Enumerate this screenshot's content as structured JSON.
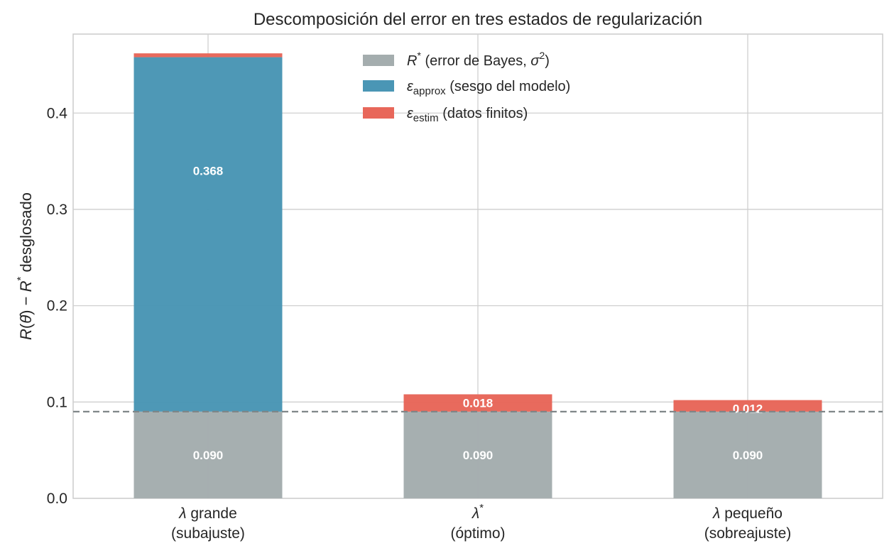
{
  "chart_data": {
    "type": "bar",
    "stacked": true,
    "title": "Descomposición del error en tres estados de regularización",
    "ylabel": "R(θ̂) − R* desglosado",
    "ylim": [
      0,
      0.482
    ],
    "yticks": [
      "0.0",
      "0.1",
      "0.2",
      "0.3",
      "0.4"
    ],
    "grid": true,
    "categories": [
      {
        "line1_symbol": "λ",
        "line1_text": " grande",
        "line2": "(subajuste)"
      },
      {
        "line1_symbol": "λ*",
        "line1_text": "",
        "line2": "(óptimo)"
      },
      {
        "line1_symbol": "λ",
        "line1_text": " pequeño",
        "line2": "(sobreajuste)"
      }
    ],
    "series": [
      {
        "name": "R* (error de Bayes, σ²)",
        "symbol": "R*",
        "text": "(error de Bayes, σ²)",
        "color": "#a4adae",
        "values": [
          0.09,
          0.09,
          0.09
        ],
        "labels": [
          "0.090",
          "0.090",
          "0.090"
        ]
      },
      {
        "name": "ε_approx (sesgo del modelo)",
        "symbol": "ε",
        "sub": "approx",
        "text": "(sesgo del modelo)",
        "color": "#4a96b5",
        "values": [
          0.368,
          0.0,
          0.0
        ],
        "labels": [
          "0.368",
          "",
          ""
        ]
      },
      {
        "name": "ε_estim (datos finitos)",
        "symbol": "ε",
        "sub": "estim",
        "text": "(datos finitos)",
        "color": "#e8675a",
        "values": [
          0.004,
          0.018,
          0.012
        ],
        "labels": [
          "",
          "0.018",
          "0.012"
        ]
      }
    ],
    "reference_line": {
      "y": 0.09,
      "style": "dashed",
      "color": "#7f8688"
    },
    "legend_position": "upper-center"
  }
}
